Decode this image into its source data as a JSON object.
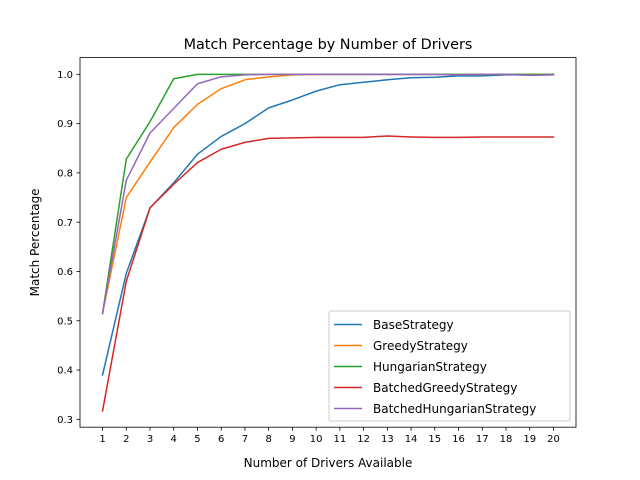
{
  "chart_data": {
    "type": "line",
    "title": "Match Percentage by Number of Drivers",
    "xlabel": "Number of Drivers Available",
    "ylabel": "Match Percentage",
    "x": [
      1,
      2,
      3,
      4,
      5,
      6,
      7,
      8,
      9,
      10,
      11,
      12,
      13,
      14,
      15,
      16,
      17,
      18,
      19,
      20
    ],
    "x_ticks": [
      "1",
      "2",
      "3",
      "4",
      "5",
      "6",
      "7",
      "8",
      "9",
      "10",
      "11",
      "12",
      "13",
      "14",
      "15",
      "16",
      "17",
      "18",
      "19",
      "20"
    ],
    "y_ticks": [
      "0.3",
      "0.4",
      "0.5",
      "0.6",
      "0.7",
      "0.8",
      "0.9",
      "1.0"
    ],
    "y_tick_values": [
      0.3,
      0.4,
      0.5,
      0.6,
      0.7,
      0.8,
      0.9,
      1.0
    ],
    "xlim": [
      0.05,
      20.95
    ],
    "ylim": [
      0.284,
      1.034
    ],
    "grid": false,
    "legend_position": "lower-right",
    "series": [
      {
        "name": "BaseStrategy",
        "color": "#1f77b4",
        "values": [
          0.39,
          0.596,
          0.729,
          0.78,
          0.838,
          0.874,
          0.9,
          0.932,
          0.948,
          0.966,
          0.979,
          0.984,
          0.989,
          0.993,
          0.994,
          0.997,
          0.997,
          0.999,
          0.999,
          1.0
        ]
      },
      {
        "name": "GreedyStrategy",
        "color": "#ff7f0e",
        "values": [
          0.515,
          0.75,
          0.822,
          0.892,
          0.939,
          0.971,
          0.989,
          0.995,
          0.999,
          1.0,
          1.0,
          1.0,
          1.0,
          1.0,
          1.0,
          1.0,
          1.0,
          1.0,
          1.0,
          1.0
        ]
      },
      {
        "name": "HungarianStrategy",
        "color": "#2ca02c",
        "values": [
          0.515,
          0.828,
          0.904,
          0.991,
          1.0,
          1.0,
          1.0,
          1.0,
          1.0,
          1.0,
          1.0,
          1.0,
          1.0,
          1.0,
          1.0,
          1.0,
          1.0,
          1.0,
          1.0,
          1.0
        ]
      },
      {
        "name": "BatchedGreedyStrategy",
        "color": "#d62728",
        "values": [
          0.317,
          0.58,
          0.729,
          0.777,
          0.821,
          0.848,
          0.862,
          0.87,
          0.871,
          0.872,
          0.872,
          0.872,
          0.875,
          0.873,
          0.872,
          0.872,
          0.873,
          0.873,
          0.873,
          0.873
        ]
      },
      {
        "name": "BatchedHungarianStrategy",
        "color": "#9467bd",
        "values": [
          0.515,
          0.785,
          0.881,
          0.931,
          0.981,
          0.995,
          0.999,
          1.0,
          1.0,
          1.0,
          1.0,
          1.0,
          1.0,
          1.0,
          1.0,
          0.999,
          1.0,
          1.0,
          0.998,
          0.999
        ]
      }
    ]
  }
}
